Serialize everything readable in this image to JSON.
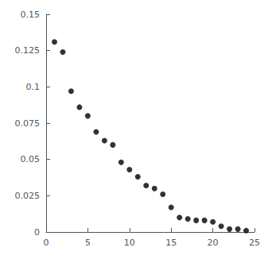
{
  "chart_data": {
    "type": "scatter",
    "x": [
      1,
      2,
      3,
      4,
      5,
      6,
      7,
      8,
      9,
      10,
      11,
      12,
      13,
      14,
      15,
      16,
      17,
      18,
      19,
      20,
      21,
      22,
      23,
      24
    ],
    "values": [
      0.131,
      0.124,
      0.097,
      0.086,
      0.08,
      0.069,
      0.063,
      0.06,
      0.048,
      0.043,
      0.038,
      0.032,
      0.03,
      0.026,
      0.017,
      0.01,
      0.009,
      0.008,
      0.008,
      0.007,
      0.004,
      0.002,
      0.002,
      0.001
    ],
    "color": "black",
    "marker": "circle",
    "xlim": [
      0,
      25
    ],
    "ylim": [
      0,
      0.15
    ],
    "xticks": [
      0,
      5,
      10,
      15,
      20,
      25
    ],
    "yticks": [
      0,
      0.025,
      0.05,
      0.075,
      0.1,
      0.125,
      0.15
    ],
    "grid": false
  }
}
